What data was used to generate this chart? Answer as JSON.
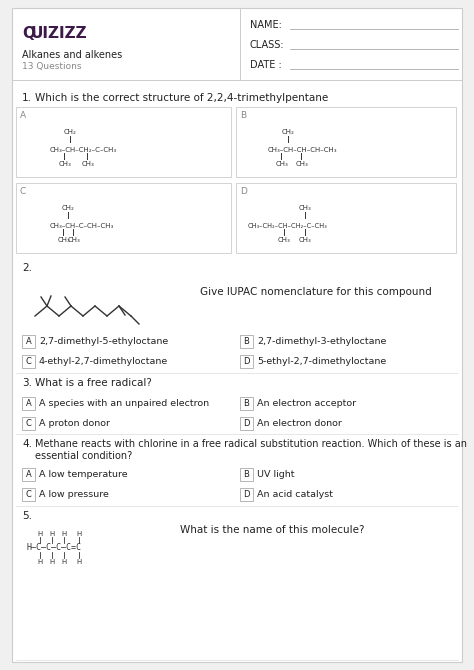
{
  "bg_color": "#f0f0f0",
  "box_bg": "#ffffff",
  "border_color": "#cccccc",
  "quizizz_color": "#3d1a4a",
  "title": "Alkanes and alkenes",
  "subtitle": "13 Questions",
  "name_label": "NAME:",
  "class_label": "CLASS:",
  "date_label": "DATE :",
  "q1_text": "Which is the correct structure of 2,2,4-trimethylpentane",
  "q2_text": "Give IUPAC nomenclature for this compound",
  "q3_text": "What is a free radical?",
  "q4_line1": "Methane reacts with chlorine in a free radical substitution reaction. Which of these is an",
  "q4_line2": "essential condition?",
  "q5_text": "What is the name of this molecule?",
  "q2_opts": [
    "2,7-dimethyl-5-ethyloctane",
    "2,7-dimethyl-3-ethyloctane",
    "4-ethyl-2,7-dimethyloctane",
    "5-ethyl-2,7-dimethyloctane"
  ],
  "q3_opts": [
    "A species with an unpaired electron",
    "An electron acceptor",
    "A proton donor",
    "An electron donor"
  ],
  "q4_opts": [
    "A low temperature",
    "UV light",
    "A low pressure",
    "An acid catalyst"
  ],
  "text_color": "#222222",
  "gray_text": "#888888",
  "struct_color": "#333333",
  "opt_labels": [
    "A",
    "B",
    "C",
    "D"
  ]
}
